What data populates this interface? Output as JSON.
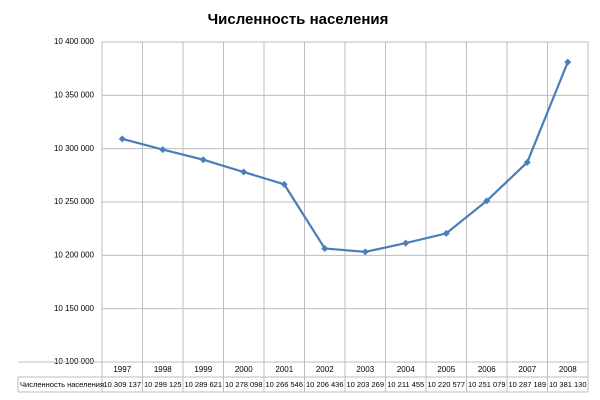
{
  "chart_data": {
    "type": "line",
    "title": "Численность населения",
    "categories": [
      "1997",
      "1998",
      "1999",
      "2000",
      "2001",
      "2002",
      "2003",
      "2004",
      "2005",
      "2006",
      "2007",
      "2008"
    ],
    "series": [
      {
        "name": "Численность населения",
        "color": "#4a7ebb",
        "values": [
          10309137,
          10299125,
          10289621,
          10278098,
          10266546,
          10206436,
          10203269,
          10211455,
          10220577,
          10251079,
          10287189,
          10381130
        ],
        "value_labels": [
          "10 309 137",
          "10 299 125",
          "10 289 621",
          "10 278 098",
          "10 266 546",
          "10 206 436",
          "10 203 269",
          "10 211 455",
          "10 220 577",
          "10 251 079",
          "10 287 189",
          "10 381 130"
        ]
      }
    ],
    "ylim": [
      10100000,
      10400000
    ],
    "yticks": [
      {
        "value": 10100000,
        "label": "10 100 000"
      },
      {
        "value": 10150000,
        "label": "10 150 000"
      },
      {
        "value": 10200000,
        "label": "10 200 000"
      },
      {
        "value": 10250000,
        "label": "10 250 000"
      },
      {
        "value": 10300000,
        "label": "10 300 000"
      },
      {
        "value": 10350000,
        "label": "10 350 000"
      },
      {
        "value": 10400000,
        "label": "10 400 000"
      }
    ],
    "grid": true
  }
}
